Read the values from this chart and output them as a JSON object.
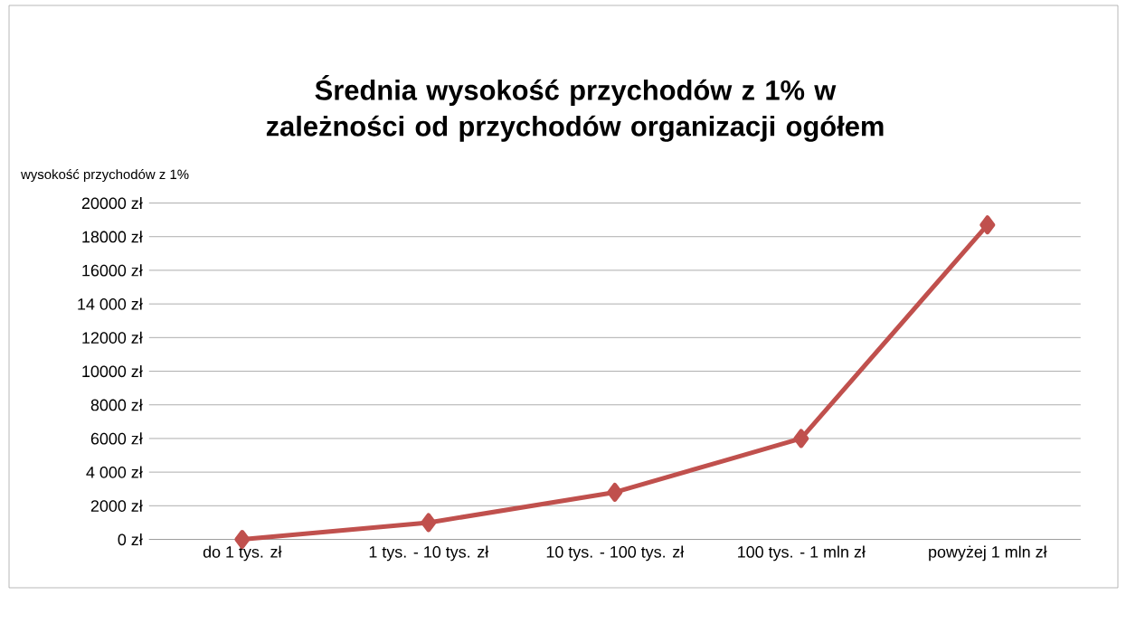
{
  "chart_data": {
    "type": "line",
    "title": "Średnia wysokość przychodów z 1% w zależności od przychodów organizacji ogółem",
    "ylabel": "wysokość przychodów z 1%",
    "categories": [
      "do 1 tys. zł",
      "1 tys. - 10 tys. zł",
      "10 tys. - 100 tys. zł",
      "100 tys. - 1 mln zł",
      "powyżej 1 mln zł"
    ],
    "series": [
      {
        "color": "#c0504d",
        "values": [
          0,
          1000,
          2800,
          6000,
          18700
        ]
      }
    ],
    "ylim": [
      0,
      20000
    ],
    "yticks": [
      {
        "value": 0,
        "label": "0 zł"
      },
      {
        "value": 2000,
        "label": "2000 zł"
      },
      {
        "value": 4000,
        "label": "4 000 zł"
      },
      {
        "value": 6000,
        "label": "6000 zł"
      },
      {
        "value": 8000,
        "label": "8000 zł"
      },
      {
        "value": 10000,
        "label": "10000 zł"
      },
      {
        "value": 12000,
        "label": "12000 zł"
      },
      {
        "value": 14000,
        "label": "14 000 zł"
      },
      {
        "value": 16000,
        "label": "16000 zł"
      },
      {
        "value": 18000,
        "label": "18000 zł"
      },
      {
        "value": 20000,
        "label": "20000 zł"
      }
    ],
    "grid": "y",
    "marker": "diamond",
    "line_style": "solid"
  }
}
